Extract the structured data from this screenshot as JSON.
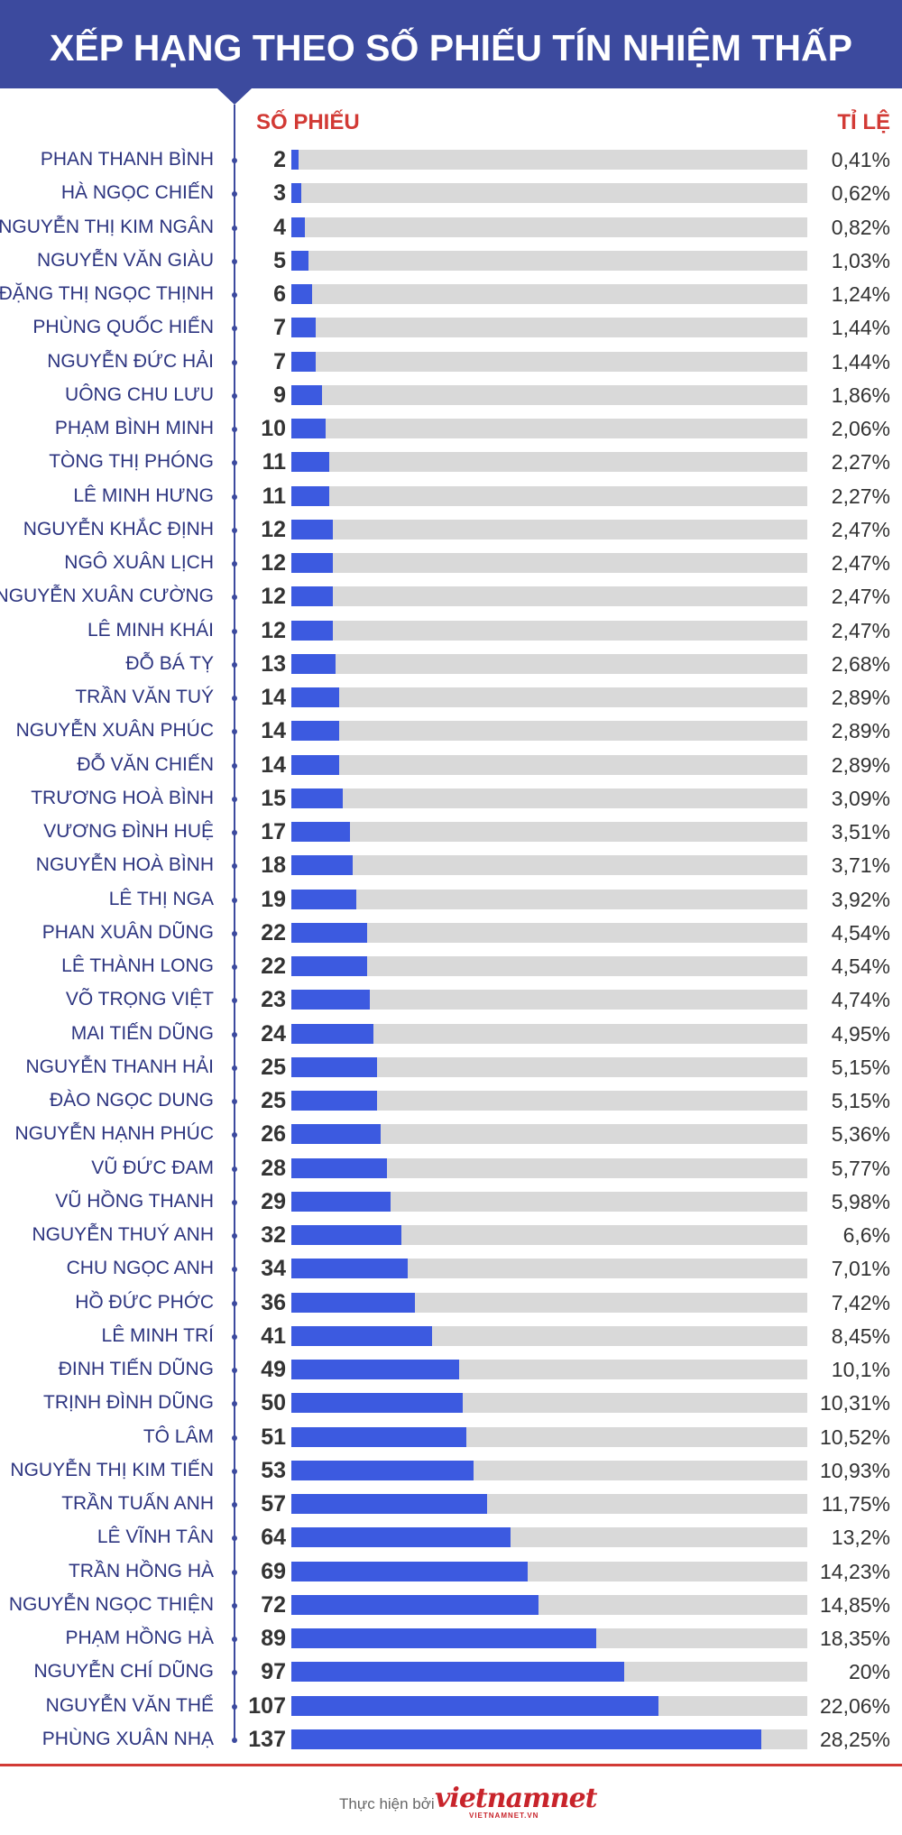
{
  "header": {
    "title": "XẾP HẠNG THEO SỐ PHIẾU TÍN NHIỆM THẤP"
  },
  "footer": {
    "credit": "Thực hiện bởi",
    "logo_text": "vietnamnet",
    "logo_sub": "VIETNAMNET.VN"
  },
  "colors": {
    "header": "#3c4a9e",
    "bar": "#3c5ae0",
    "track": "#d9d9d9",
    "accent": "#d23a35",
    "name": "#2d3580"
  },
  "chart_data": {
    "type": "bar",
    "orientation": "horizontal",
    "title": "XẾP HẠNG THEO SỐ PHIẾU TÍN NHIỆM THẤP",
    "column_votes": "SỐ PHIẾU",
    "column_pct": "TỈ LỆ",
    "xlim": [
      0,
      100
    ],
    "grid": false,
    "rows": [
      {
        "name": "PHAN THANH BÌNH",
        "votes": 2,
        "pct_value": 0.41,
        "pct": "0,41%"
      },
      {
        "name": "HÀ NGỌC CHIẾN",
        "votes": 3,
        "pct_value": 0.62,
        "pct": "0,62%"
      },
      {
        "name": "NGUYỄN THỊ KIM NGÂN",
        "votes": 4,
        "pct_value": 0.82,
        "pct": "0,82%"
      },
      {
        "name": "NGUYỄN VĂN GIÀU",
        "votes": 5,
        "pct_value": 1.03,
        "pct": "1,03%"
      },
      {
        "name": "ĐẶNG THỊ NGỌC THỊNH",
        "votes": 6,
        "pct_value": 1.24,
        "pct": "1,24%"
      },
      {
        "name": "PHÙNG QUỐC HIỂN",
        "votes": 7,
        "pct_value": 1.44,
        "pct": "1,44%"
      },
      {
        "name": "NGUYỄN ĐỨC HẢI",
        "votes": 7,
        "pct_value": 1.44,
        "pct": "1,44%"
      },
      {
        "name": "UÔNG CHU LƯU",
        "votes": 9,
        "pct_value": 1.86,
        "pct": "1,86%"
      },
      {
        "name": "PHẠM BÌNH MINH",
        "votes": 10,
        "pct_value": 2.06,
        "pct": "2,06%"
      },
      {
        "name": "TÒNG THỊ PHÓNG",
        "votes": 11,
        "pct_value": 2.27,
        "pct": "2,27%"
      },
      {
        "name": "LÊ MINH HƯNG",
        "votes": 11,
        "pct_value": 2.27,
        "pct": "2,27%"
      },
      {
        "name": "NGUYỄN KHẮC ĐỊNH",
        "votes": 12,
        "pct_value": 2.47,
        "pct": "2,47%"
      },
      {
        "name": "NGÔ XUÂN LỊCH",
        "votes": 12,
        "pct_value": 2.47,
        "pct": "2,47%"
      },
      {
        "name": "NGUYỄN XUÂN CƯỜNG",
        "votes": 12,
        "pct_value": 2.47,
        "pct": "2,47%"
      },
      {
        "name": "LÊ MINH KHÁI",
        "votes": 12,
        "pct_value": 2.47,
        "pct": "2,47%"
      },
      {
        "name": "ĐỖ BÁ TỴ",
        "votes": 13,
        "pct_value": 2.68,
        "pct": "2,68%"
      },
      {
        "name": "TRẦN VĂN TUÝ",
        "votes": 14,
        "pct_value": 2.89,
        "pct": "2,89%"
      },
      {
        "name": "NGUYỄN XUÂN PHÚC",
        "votes": 14,
        "pct_value": 2.89,
        "pct": "2,89%"
      },
      {
        "name": "ĐỖ VĂN CHIẾN",
        "votes": 14,
        "pct_value": 2.89,
        "pct": "2,89%"
      },
      {
        "name": "TRƯƠNG HOÀ BÌNH",
        "votes": 15,
        "pct_value": 3.09,
        "pct": "3,09%"
      },
      {
        "name": "VƯƠNG ĐÌNH HUỆ",
        "votes": 17,
        "pct_value": 3.51,
        "pct": "3,51%"
      },
      {
        "name": "NGUYỄN HOÀ BÌNH",
        "votes": 18,
        "pct_value": 3.71,
        "pct": "3,71%"
      },
      {
        "name": "LÊ THỊ NGA",
        "votes": 19,
        "pct_value": 3.92,
        "pct": "3,92%"
      },
      {
        "name": "PHAN XUÂN DŨNG",
        "votes": 22,
        "pct_value": 4.54,
        "pct": "4,54%"
      },
      {
        "name": "LÊ THÀNH LONG",
        "votes": 22,
        "pct_value": 4.54,
        "pct": "4,54%"
      },
      {
        "name": "VÕ TRỌNG VIỆT",
        "votes": 23,
        "pct_value": 4.74,
        "pct": "4,74%"
      },
      {
        "name": "MAI TIẾN DŨNG",
        "votes": 24,
        "pct_value": 4.95,
        "pct": "4,95%"
      },
      {
        "name": "NGUYỄN THANH HẢI",
        "votes": 25,
        "pct_value": 5.15,
        "pct": "5,15%"
      },
      {
        "name": "ĐÀO NGỌC DUNG",
        "votes": 25,
        "pct_value": 5.15,
        "pct": "5,15%"
      },
      {
        "name": "NGUYỄN HẠNH PHÚC",
        "votes": 26,
        "pct_value": 5.36,
        "pct": "5,36%"
      },
      {
        "name": "VŨ ĐỨC ĐAM",
        "votes": 28,
        "pct_value": 5.77,
        "pct": "5,77%"
      },
      {
        "name": "VŨ HỒNG THANH",
        "votes": 29,
        "pct_value": 5.98,
        "pct": "5,98%"
      },
      {
        "name": "NGUYỄN THUÝ ANH",
        "votes": 32,
        "pct_value": 6.6,
        "pct": "6,6%"
      },
      {
        "name": "CHU NGỌC ANH",
        "votes": 34,
        "pct_value": 7.01,
        "pct": "7,01%"
      },
      {
        "name": "HỒ ĐỨC PHỚC",
        "votes": 36,
        "pct_value": 7.42,
        "pct": "7,42%"
      },
      {
        "name": "LÊ MINH TRÍ",
        "votes": 41,
        "pct_value": 8.45,
        "pct": "8,45%"
      },
      {
        "name": "ĐINH TIẾN DŨNG",
        "votes": 49,
        "pct_value": 10.1,
        "pct": "10,1%"
      },
      {
        "name": "TRỊNH ĐÌNH DŨNG",
        "votes": 50,
        "pct_value": 10.31,
        "pct": "10,31%"
      },
      {
        "name": "TÔ LÂM",
        "votes": 51,
        "pct_value": 10.52,
        "pct": "10,52%"
      },
      {
        "name": "NGUYỄN THỊ KIM TIẾN",
        "votes": 53,
        "pct_value": 10.93,
        "pct": "10,93%"
      },
      {
        "name": "TRẦN TUẤN ANH",
        "votes": 57,
        "pct_value": 11.75,
        "pct": "11,75%"
      },
      {
        "name": "LÊ VĨNH TÂN",
        "votes": 64,
        "pct_value": 13.2,
        "pct": "13,2%"
      },
      {
        "name": "TRẦN HỒNG HÀ",
        "votes": 69,
        "pct_value": 14.23,
        "pct": "14,23%"
      },
      {
        "name": "NGUYỄN NGỌC THIỆN",
        "votes": 72,
        "pct_value": 14.85,
        "pct": "14,85%"
      },
      {
        "name": "PHẠM HỒNG HÀ",
        "votes": 89,
        "pct_value": 18.35,
        "pct": "18,35%"
      },
      {
        "name": "NGUYỄN CHÍ DŨNG",
        "votes": 97,
        "pct_value": 20,
        "pct": "20%"
      },
      {
        "name": "NGUYỄN VĂN THỂ",
        "votes": 107,
        "pct_value": 22.06,
        "pct": "22,06%"
      },
      {
        "name": "PHÙNG XUÂN NHẠ",
        "votes": 137,
        "pct_value": 28.25,
        "pct": "28,25%"
      }
    ]
  }
}
